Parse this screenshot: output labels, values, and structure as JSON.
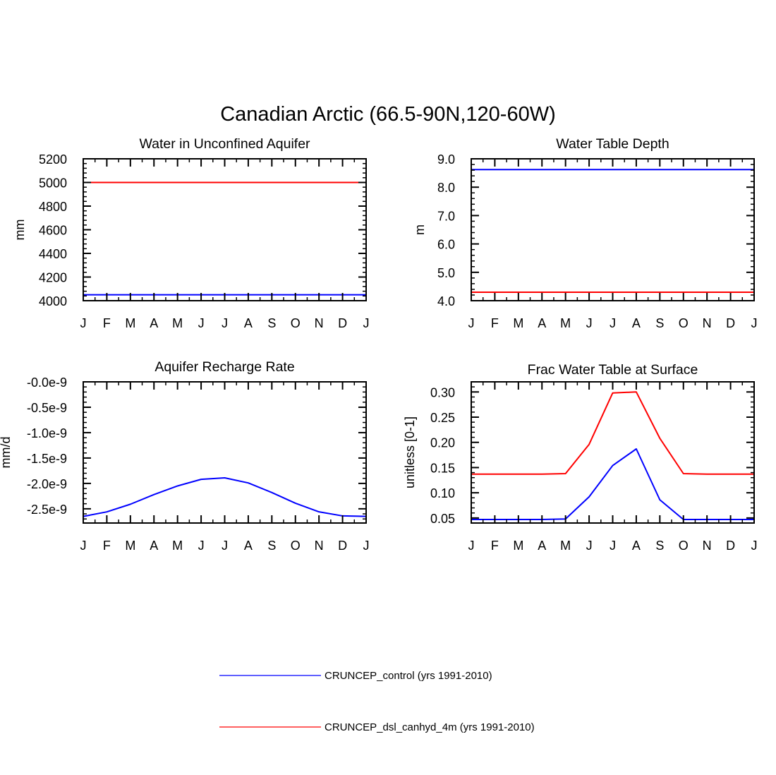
{
  "figure": {
    "title": "Canadian Arctic (66.5-90N,120-60W)"
  },
  "colors": {
    "control": "#0000ff",
    "experiment": "#ff0000",
    "axis": "#000000"
  },
  "legend": {
    "entries": [
      {
        "name": "CRUNCEP_control (yrs 1991-2010)",
        "color": "#0000ff"
      },
      {
        "name": "CRUNCEP_dsl_canhyd_4m (yrs 1991-2010)",
        "color": "#ff0000"
      }
    ]
  },
  "chart_data": [
    {
      "type": "line",
      "title": "Water in Unconfined Aquifer",
      "xlabel": "",
      "ylabel": "mm",
      "x": [
        "J",
        "F",
        "M",
        "A",
        "M",
        "J",
        "J",
        "A",
        "S",
        "O",
        "N",
        "D",
        "J"
      ],
      "ylim": [
        4000,
        5200
      ],
      "yticks": [
        4000,
        4200,
        4400,
        4600,
        4800,
        5000,
        5200
      ],
      "ytick_labels": [
        "4000",
        "4200",
        "4400",
        "4600",
        "4800",
        "5000",
        "5200"
      ],
      "series": [
        {
          "name": "CRUNCEP_control (yrs 1991-2010)",
          "color": "#0000ff",
          "values": [
            4050,
            4050,
            4050,
            4050,
            4050,
            4050,
            4050,
            4050,
            4050,
            4050,
            4050,
            4050,
            4050
          ]
        },
        {
          "name": "CRUNCEP_dsl_canhyd_4m (yrs 1991-2010)",
          "color": "#ff0000",
          "values": [
            5000,
            5000,
            5000,
            5000,
            5000,
            5000,
            5000,
            5000,
            5000,
            5000,
            5000,
            5000,
            5000
          ]
        }
      ]
    },
    {
      "type": "line",
      "title": "Water Table Depth",
      "xlabel": "",
      "ylabel": "m",
      "x": [
        "J",
        "F",
        "M",
        "A",
        "M",
        "J",
        "J",
        "A",
        "S",
        "O",
        "N",
        "D",
        "J"
      ],
      "ylim": [
        4.0,
        9.0
      ],
      "yticks": [
        4.0,
        5.0,
        6.0,
        7.0,
        8.0,
        9.0
      ],
      "ytick_labels": [
        "4.0",
        "5.0",
        "6.0",
        "7.0",
        "8.0",
        "9.0"
      ],
      "series": [
        {
          "name": "CRUNCEP_control (yrs 1991-2010)",
          "color": "#0000ff",
          "values": [
            8.62,
            8.62,
            8.62,
            8.62,
            8.62,
            8.62,
            8.62,
            8.62,
            8.62,
            8.62,
            8.62,
            8.62,
            8.62
          ]
        },
        {
          "name": "CRUNCEP_dsl_canhyd_4m (yrs 1991-2010)",
          "color": "#ff0000",
          "values": [
            4.3,
            4.3,
            4.3,
            4.3,
            4.3,
            4.3,
            4.3,
            4.3,
            4.3,
            4.3,
            4.3,
            4.3,
            4.3
          ]
        }
      ]
    },
    {
      "type": "line",
      "title": "Aquifer Recharge Rate",
      "xlabel": "",
      "ylabel": "mm/d",
      "x": [
        "J",
        "F",
        "M",
        "A",
        "M",
        "J",
        "J",
        "A",
        "S",
        "O",
        "N",
        "D",
        "J"
      ],
      "ylim": [
        -2.78,
        0
      ],
      "yticks": [
        -2.5,
        -2.0,
        -1.5,
        -1.0,
        -0.5,
        0.0
      ],
      "ytick_labels": [
        "-2.5e-9",
        "-2.0e-9",
        "-1.5e-9",
        "-1.0e-9",
        "-0.5e-9",
        "-0.0e-9"
      ],
      "units_scale": "1e-9",
      "series": [
        {
          "name": "CRUNCEP_control (yrs 1991-2010)",
          "color": "#0000ff",
          "values": [
            -2.65,
            -2.56,
            -2.41,
            -2.22,
            -2.05,
            -1.92,
            -1.89,
            -1.99,
            -2.18,
            -2.39,
            -2.56,
            -2.64,
            -2.65
          ]
        },
        {
          "name": "CRUNCEP_dsl_canhyd_4m (yrs 1991-2010)",
          "color": "#ff0000",
          "values": [
            0,
            0,
            0,
            0,
            0,
            0,
            0,
            0,
            0,
            0,
            0,
            0,
            0
          ]
        }
      ]
    },
    {
      "type": "line",
      "title": "Frac Water Table at Surface",
      "xlabel": "",
      "ylabel": "unitless [0-1]",
      "x": [
        "J",
        "F",
        "M",
        "A",
        "M",
        "J",
        "J",
        "A",
        "S",
        "O",
        "N",
        "D",
        "J"
      ],
      "ylim": [
        0.04,
        0.32
      ],
      "yticks": [
        0.05,
        0.1,
        0.15,
        0.2,
        0.25,
        0.3
      ],
      "ytick_labels": [
        "0.05",
        "0.10",
        "0.15",
        "0.20",
        "0.25",
        "0.30"
      ],
      "series": [
        {
          "name": "CRUNCEP_control (yrs 1991-2010)",
          "color": "#0000ff",
          "values": [
            0.047,
            0.047,
            0.047,
            0.047,
            0.048,
            0.092,
            0.154,
            0.187,
            0.086,
            0.047,
            0.047,
            0.047,
            0.047
          ]
        },
        {
          "name": "CRUNCEP_dsl_canhyd_4m (yrs 1991-2010)",
          "color": "#ff0000",
          "values": [
            0.137,
            0.137,
            0.137,
            0.137,
            0.138,
            0.196,
            0.298,
            0.3,
            0.208,
            0.138,
            0.137,
            0.137,
            0.137
          ]
        }
      ]
    }
  ]
}
